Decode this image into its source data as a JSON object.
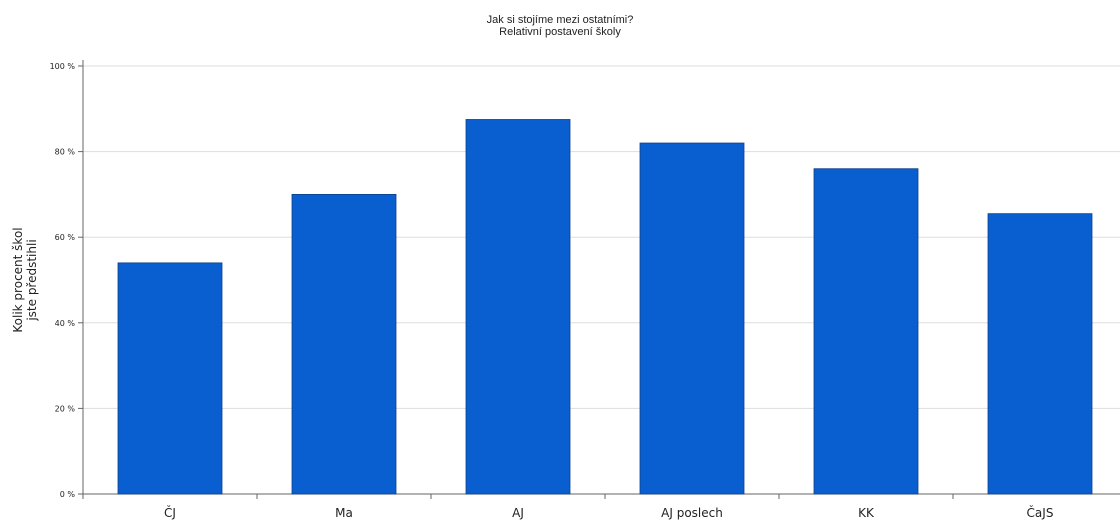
{
  "chart_data": {
    "type": "bar",
    "title": "Jak si stojíme mezi ostatními?",
    "subtitle": "Relativní postavení školy",
    "ylabel_lines": [
      "Kolik procent škol",
      "jste předstihli"
    ],
    "xlabel": "",
    "categories": [
      "ČJ",
      "Ma",
      "AJ",
      "AJ poslech",
      "KK",
      "ČaJS"
    ],
    "values": [
      54,
      70,
      87.5,
      82,
      76,
      65.5
    ],
    "ylim": [
      0,
      100
    ],
    "yticks": [
      0,
      20,
      40,
      60,
      80,
      100
    ],
    "ytick_labels": [
      "0 %",
      "20 %",
      "40 %",
      "60 %",
      "80 %",
      "100 %"
    ],
    "grid": true,
    "legend": "none",
    "bar_color": "#0a5fd0",
    "grid_color": "#dddddd",
    "axis_color": "#666666"
  }
}
